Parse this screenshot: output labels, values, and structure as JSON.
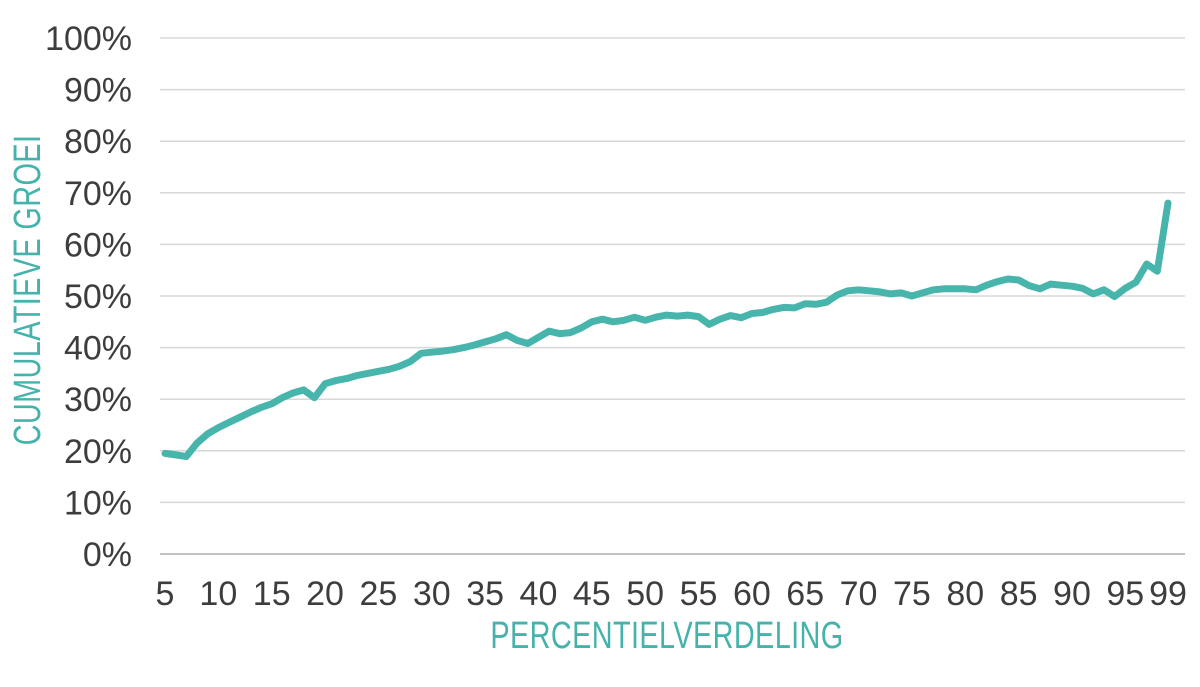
{
  "chart_data": {
    "type": "line",
    "title": "",
    "xlabel": "PERCENTIELVERDELING",
    "ylabel": "CUMULATIEVE GROEI",
    "x": [
      5,
      6,
      7,
      8,
      9,
      10,
      11,
      12,
      13,
      14,
      15,
      16,
      17,
      18,
      19,
      20,
      21,
      22,
      23,
      24,
      25,
      26,
      27,
      28,
      29,
      30,
      31,
      32,
      33,
      34,
      35,
      36,
      37,
      38,
      39,
      40,
      41,
      42,
      43,
      44,
      45,
      46,
      47,
      48,
      49,
      50,
      51,
      52,
      53,
      54,
      55,
      56,
      57,
      58,
      59,
      60,
      61,
      62,
      63,
      64,
      65,
      66,
      67,
      68,
      69,
      70,
      71,
      72,
      73,
      74,
      75,
      76,
      77,
      78,
      79,
      80,
      81,
      82,
      83,
      84,
      85,
      86,
      87,
      88,
      89,
      90,
      91,
      92,
      93,
      94,
      95,
      96,
      97,
      98,
      99
    ],
    "values": [
      19.5,
      19.2,
      18.9,
      21.5,
      23.3,
      24.5,
      25.5,
      26.5,
      27.5,
      28.4,
      29.1,
      30.3,
      31.2,
      31.8,
      30.3,
      33.0,
      33.6,
      34.0,
      34.6,
      35.0,
      35.4,
      35.8,
      36.4,
      37.3,
      38.9,
      39.1,
      39.3,
      39.6,
      40.0,
      40.5,
      41.1,
      41.7,
      42.5,
      41.4,
      40.8,
      42.0,
      43.2,
      42.7,
      42.9,
      43.8,
      45.0,
      45.5,
      45.0,
      45.3,
      45.9,
      45.3,
      45.9,
      46.3,
      46.1,
      46.3,
      46.0,
      44.5,
      45.5,
      46.2,
      45.8,
      46.6,
      46.8,
      47.4,
      47.8,
      47.7,
      48.5,
      48.4,
      48.8,
      50.2,
      51.0,
      51.2,
      51.0,
      50.8,
      50.4,
      50.6,
      50.0,
      50.6,
      51.2,
      51.4,
      51.4,
      51.4,
      51.2,
      52.1,
      52.8,
      53.3,
      53.1,
      52.0,
      51.4,
      52.3,
      52.1,
      51.9,
      51.5,
      50.4,
      51.2,
      49.9,
      51.5,
      52.7,
      56.2,
      54.8,
      68.0
    ],
    "x_ticks": [
      5,
      10,
      15,
      20,
      25,
      30,
      35,
      40,
      45,
      50,
      55,
      60,
      65,
      70,
      75,
      80,
      85,
      90,
      95,
      99
    ],
    "y_ticks": [
      "0%",
      "10%",
      "20%",
      "30%",
      "40%",
      "50%",
      "60%",
      "70%",
      "80%",
      "90%",
      "100%"
    ],
    "xlim": [
      5,
      99
    ],
    "ylim": [
      0,
      100
    ],
    "grid": "horizontal",
    "legend": "none",
    "colors": {
      "line": "#47b5ac",
      "axis_title": "#45b3ab",
      "tick_label": "#3d3d3d",
      "gridline": "#d8d8d8",
      "baseline": "#c2c2c2",
      "background": "#ffffff"
    }
  }
}
